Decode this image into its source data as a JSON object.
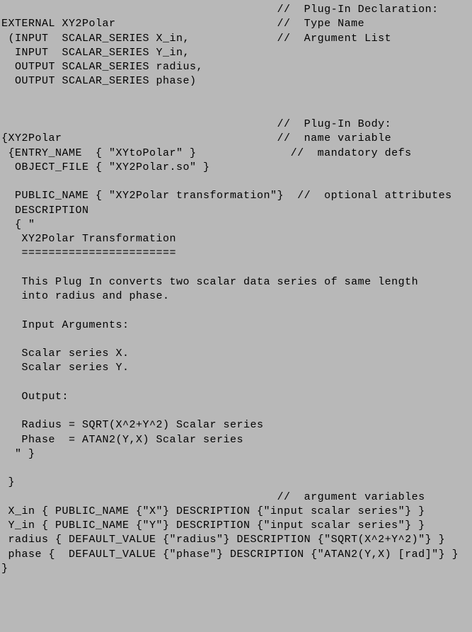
{
  "code": {
    "lines": [
      "                                         //  Plug-In Declaration:",
      "EXTERNAL XY2Polar                        //  Type Name",
      " (INPUT  SCALAR_SERIES X_in,             //  Argument List",
      "  INPUT  SCALAR_SERIES Y_in,",
      "  OUTPUT SCALAR_SERIES radius,",
      "  OUTPUT SCALAR_SERIES phase)",
      "",
      "",
      "                                         //  Plug-In Body:",
      "{XY2Polar                                //  name variable",
      " {ENTRY_NAME  { \"XYtoPolar\" }              //  mandatory defs",
      "  OBJECT_FILE { \"XY2Polar.so\" }",
      "",
      "  PUBLIC_NAME { \"XY2Polar transformation\"}  //  optional attributes",
      "  DESCRIPTION",
      "  { \"",
      "   XY2Polar Transformation",
      "   =======================",
      "",
      "   This Plug In converts two scalar data series of same length",
      "   into radius and phase.",
      "",
      "   Input Arguments:",
      "",
      "   Scalar series X.",
      "   Scalar series Y.",
      "",
      "   Output:",
      "",
      "   Radius = SQRT(X^2+Y^2) Scalar series",
      "   Phase  = ATAN2(Y,X) Scalar series",
      "  \" }",
      "",
      " }",
      "                                         //  argument variables",
      " X_in { PUBLIC_NAME {\"X\"} DESCRIPTION {\"input scalar series\"} }",
      " Y_in { PUBLIC_NAME {\"Y\"} DESCRIPTION {\"input scalar series\"} }",
      " radius { DEFAULT_VALUE {\"radius\"} DESCRIPTION {\"SQRT(X^2+Y^2)\"} }",
      " phase {  DEFAULT_VALUE {\"phase\"} DESCRIPTION {\"ATAN2(Y,X) [rad]\"} }",
      "}"
    ],
    "background_color": "#b8b8b8",
    "text_color": "#000000",
    "font_family": "Courier New",
    "font_size": 15
  }
}
